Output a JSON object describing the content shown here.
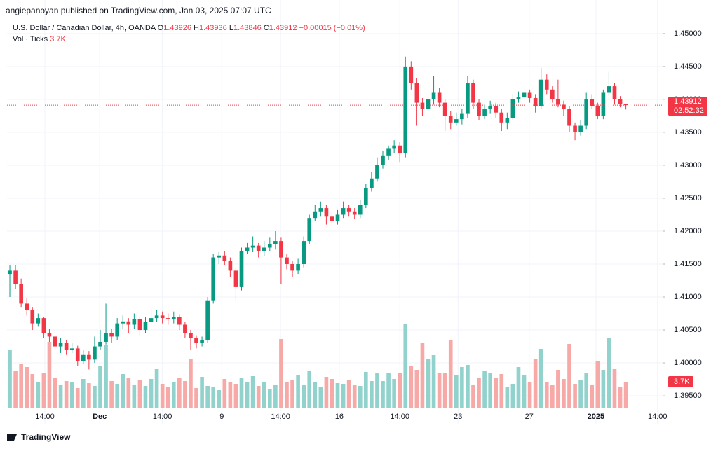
{
  "header": {
    "published": "angiepanoyan published on TradingView.com, Jan 03, 2025 07:07 UTC"
  },
  "footer": {
    "brand": "TradingView"
  },
  "chart_data": {
    "type": "candlestick",
    "title": "U.S. Dollar / Canadian Dollar, 4h, OANDA",
    "ohlc_labels": [
      "O",
      "H",
      "L",
      "C"
    ],
    "change": "−0.00015 (−0.01%)",
    "volume_title": "Vol · Ticks",
    "volume_label": "3.7K",
    "countdown": "02:52:32",
    "up_color": "#089981",
    "down_color": "#f23645",
    "volume_up_color": "#92d2cc",
    "volume_down_color": "#f7a9a7",
    "grid": true,
    "ylim": [
      1.3932,
      1.4519
    ],
    "yticks": [
      {
        "value": 1.395,
        "label": "1.39500"
      },
      {
        "value": 1.4,
        "label": "1.40000"
      },
      {
        "value": 1.405,
        "label": "1.40500"
      },
      {
        "value": 1.41,
        "label": "1.41000"
      },
      {
        "value": 1.415,
        "label": "1.41500"
      },
      {
        "value": 1.42,
        "label": "1.42000"
      },
      {
        "value": 1.425,
        "label": "1.42500"
      },
      {
        "value": 1.43,
        "label": "1.43000"
      },
      {
        "value": 1.435,
        "label": "1.43500"
      },
      {
        "value": 1.44,
        "label": "1.44000"
      },
      {
        "value": 1.445,
        "label": "1.44500"
      },
      {
        "value": 1.45,
        "label": "1.45000"
      }
    ],
    "xlim": [
      -0.5,
      115.5
    ],
    "xticks": [
      {
        "value": 6.2,
        "label": "14:00"
      },
      {
        "value": 15.9,
        "label": "Dec"
      },
      {
        "value": 27.0,
        "label": "14:00"
      },
      {
        "value": 37.5,
        "label": "9"
      },
      {
        "value": 47.9,
        "label": "14:00"
      },
      {
        "value": 58.3,
        "label": "16"
      },
      {
        "value": 69.0,
        "label": "14:00"
      },
      {
        "value": 79.3,
        "label": "23"
      },
      {
        "value": 91.9,
        "label": "27"
      },
      {
        "value": 103.7,
        "label": "2025"
      },
      {
        "value": 114.6,
        "label": "14:00"
      }
    ],
    "volume_ylim": [
      0,
      55200
    ],
    "candles": [
      [
        1.4135,
        1.4148,
        1.41,
        1.414
      ],
      [
        1.414,
        1.4148,
        1.4112,
        1.412
      ],
      [
        1.412,
        1.4128,
        1.4085,
        1.409
      ],
      [
        1.409,
        1.4098,
        1.4072,
        1.408
      ],
      [
        1.408,
        1.4085,
        1.405,
        1.406
      ],
      [
        1.406,
        1.4075,
        1.4055,
        1.4068
      ],
      [
        1.4068,
        1.407,
        1.4038,
        1.4045
      ],
      [
        1.4045,
        1.4052,
        1.4032,
        1.404
      ],
      [
        1.404,
        1.4046,
        1.4018,
        1.4025
      ],
      [
        1.4025,
        1.4038,
        1.4015,
        1.403
      ],
      [
        1.403,
        1.4035,
        1.4012,
        1.402
      ],
      [
        1.402,
        1.403,
        1.4015,
        1.4022
      ],
      [
        1.4022,
        1.4026,
        1.3995,
        1.4003
      ],
      [
        1.4003,
        1.402,
        1.3998,
        1.4012
      ],
      [
        1.4012,
        1.4018,
        1.399,
        1.4005
      ],
      [
        1.4005,
        1.404,
        1.4,
        1.4025
      ],
      [
        1.4025,
        1.405,
        1.402,
        1.4032
      ],
      [
        1.4032,
        1.409,
        1.4028,
        1.4045
      ],
      [
        1.4045,
        1.4052,
        1.403,
        1.404
      ],
      [
        1.404,
        1.4068,
        1.4035,
        1.406
      ],
      [
        1.406,
        1.4072,
        1.4052,
        1.4063
      ],
      [
        1.4063,
        1.4068,
        1.4045,
        1.4058
      ],
      [
        1.4058,
        1.4075,
        1.4052,
        1.4066
      ],
      [
        1.4066,
        1.407,
        1.4042,
        1.405
      ],
      [
        1.405,
        1.407,
        1.4045,
        1.4062
      ],
      [
        1.4062,
        1.4082,
        1.4058,
        1.4068
      ],
      [
        1.4068,
        1.408,
        1.4062,
        1.4072
      ],
      [
        1.4072,
        1.4078,
        1.406,
        1.4068
      ],
      [
        1.4068,
        1.4075,
        1.4058,
        1.4066
      ],
      [
        1.4066,
        1.4078,
        1.406,
        1.407
      ],
      [
        1.407,
        1.4074,
        1.405,
        1.4058
      ],
      [
        1.4058,
        1.4062,
        1.4038,
        1.4045
      ],
      [
        1.4045,
        1.405,
        1.402,
        1.4038
      ],
      [
        1.4038,
        1.4042,
        1.4022,
        1.403
      ],
      [
        1.403,
        1.404,
        1.4025,
        1.4035
      ],
      [
        1.4035,
        1.41,
        1.403,
        1.4095
      ],
      [
        1.4095,
        1.4165,
        1.409,
        1.416
      ],
      [
        1.416,
        1.4168,
        1.415,
        1.4163
      ],
      [
        1.4163,
        1.417,
        1.4148,
        1.4155
      ],
      [
        1.4155,
        1.416,
        1.413,
        1.414
      ],
      [
        1.414,
        1.4145,
        1.4095,
        1.4115
      ],
      [
        1.4115,
        1.4175,
        1.411,
        1.417
      ],
      [
        1.417,
        1.4182,
        1.4165,
        1.4175
      ],
      [
        1.4175,
        1.4192,
        1.4168,
        1.4178
      ],
      [
        1.4178,
        1.4182,
        1.416,
        1.417
      ],
      [
        1.417,
        1.4185,
        1.4162,
        1.4175
      ],
      [
        1.4175,
        1.419,
        1.417,
        1.418
      ],
      [
        1.418,
        1.42,
        1.4172,
        1.4185
      ],
      [
        1.4185,
        1.419,
        1.412,
        1.416
      ],
      [
        1.416,
        1.4165,
        1.4142,
        1.415
      ],
      [
        1.415,
        1.4155,
        1.413,
        1.414
      ],
      [
        1.414,
        1.4158,
        1.4135,
        1.415
      ],
      [
        1.415,
        1.4192,
        1.4145,
        1.4185
      ],
      [
        1.4185,
        1.4225,
        1.418,
        1.422
      ],
      [
        1.422,
        1.424,
        1.4215,
        1.423
      ],
      [
        1.423,
        1.4245,
        1.4222,
        1.4235
      ],
      [
        1.4235,
        1.424,
        1.421,
        1.4222
      ],
      [
        1.4222,
        1.4228,
        1.4208,
        1.4215
      ],
      [
        1.4215,
        1.4232,
        1.421,
        1.4225
      ],
      [
        1.4225,
        1.4245,
        1.422,
        1.4235
      ],
      [
        1.4235,
        1.424,
        1.4222,
        1.423
      ],
      [
        1.423,
        1.4235,
        1.4218,
        1.4225
      ],
      [
        1.4225,
        1.4248,
        1.422,
        1.424
      ],
      [
        1.424,
        1.4272,
        1.4235,
        1.4265
      ],
      [
        1.4265,
        1.429,
        1.426,
        1.428
      ],
      [
        1.428,
        1.4312,
        1.4275,
        1.43
      ],
      [
        1.43,
        1.4322,
        1.4295,
        1.4315
      ],
      [
        1.4315,
        1.433,
        1.4308,
        1.4325
      ],
      [
        1.4325,
        1.4338,
        1.4318,
        1.433
      ],
      [
        1.433,
        1.4335,
        1.4305,
        1.4318
      ],
      [
        1.4318,
        1.4465,
        1.4312,
        1.445
      ],
      [
        1.445,
        1.4458,
        1.4415,
        1.4425
      ],
      [
        1.4425,
        1.4432,
        1.436,
        1.4395
      ],
      [
        1.4395,
        1.4402,
        1.4375,
        1.4385
      ],
      [
        1.4385,
        1.4412,
        1.438,
        1.44
      ],
      [
        1.44,
        1.4435,
        1.4392,
        1.441
      ],
      [
        1.441,
        1.4418,
        1.4388,
        1.4395
      ],
      [
        1.4395,
        1.44,
        1.4352,
        1.4375
      ],
      [
        1.4375,
        1.4382,
        1.4355,
        1.4365
      ],
      [
        1.4365,
        1.438,
        1.436,
        1.437
      ],
      [
        1.437,
        1.4385,
        1.4362,
        1.4378
      ],
      [
        1.4378,
        1.4435,
        1.4372,
        1.4425
      ],
      [
        1.4425,
        1.443,
        1.4385,
        1.4395
      ],
      [
        1.4395,
        1.44,
        1.4368,
        1.4375
      ],
      [
        1.4375,
        1.4392,
        1.437,
        1.4385
      ],
      [
        1.4385,
        1.4398,
        1.4378,
        1.439
      ],
      [
        1.439,
        1.4395,
        1.4372,
        1.438
      ],
      [
        1.438,
        1.4385,
        1.4352,
        1.4365
      ],
      [
        1.4365,
        1.438,
        1.4355,
        1.4372
      ],
      [
        1.4372,
        1.4408,
        1.4368,
        1.44
      ],
      [
        1.44,
        1.4412,
        1.4395,
        1.4403
      ],
      [
        1.4403,
        1.442,
        1.4398,
        1.441
      ],
      [
        1.441,
        1.4415,
        1.4395,
        1.4402
      ],
      [
        1.4402,
        1.4408,
        1.438,
        1.439
      ],
      [
        1.439,
        1.4448,
        1.4385,
        1.443
      ],
      [
        1.443,
        1.4438,
        1.4408,
        1.4415
      ],
      [
        1.4415,
        1.442,
        1.4395,
        1.44
      ],
      [
        1.44,
        1.443,
        1.4388,
        1.4392
      ],
      [
        1.4392,
        1.4398,
        1.4375,
        1.4385
      ],
      [
        1.4385,
        1.439,
        1.435,
        1.436
      ],
      [
        1.436,
        1.4365,
        1.4338,
        1.435
      ],
      [
        1.435,
        1.4368,
        1.4345,
        1.436
      ],
      [
        1.436,
        1.441,
        1.4355,
        1.44
      ],
      [
        1.44,
        1.4408,
        1.4385,
        1.439
      ],
      [
        1.439,
        1.4395,
        1.437,
        1.4375
      ],
      [
        1.4375,
        1.4415,
        1.437,
        1.441
      ],
      [
        1.441,
        1.4442,
        1.4405,
        1.442
      ],
      [
        1.442,
        1.4425,
        1.4392,
        1.44
      ],
      [
        1.44,
        1.4405,
        1.4388,
        1.4393
      ],
      [
        1.43926,
        1.43936,
        1.43846,
        1.43912
      ]
    ],
    "volumes": [
      8200,
      5300,
      6200,
      5800,
      4800,
      3700,
      5000,
      9400,
      4200,
      3200,
      3800,
      3600,
      2800,
      4100,
      3500,
      3100,
      5900,
      8900,
      3800,
      3400,
      4800,
      4300,
      3200,
      3900,
      3100,
      4100,
      5500,
      3400,
      2900,
      3600,
      4300,
      3800,
      6900,
      2800,
      4400,
      3100,
      3000,
      2500,
      4100,
      3700,
      3400,
      4300,
      3600,
      4500,
      3100,
      3700,
      2700,
      3300,
      9800,
      3600,
      4000,
      4600,
      3200,
      5300,
      3600,
      2900,
      4400,
      4100,
      3500,
      3400,
      4000,
      3200,
      3100,
      5100,
      3800,
      4900,
      3800,
      5000,
      4100,
      5000,
      12000,
      6000,
      5400,
      9300,
      6900,
      7500,
      4900,
      4900,
      9700,
      4600,
      5800,
      6100,
      3300,
      4300,
      5200,
      5000,
      4200,
      4800,
      3000,
      3400,
      5800,
      4700,
      3700,
      6900,
      8400,
      3700,
      3300,
      5400,
      4100,
      9100,
      3400,
      3900,
      5000,
      3300,
      6600,
      5400,
      9900,
      5500,
      3000,
      3700
    ]
  }
}
